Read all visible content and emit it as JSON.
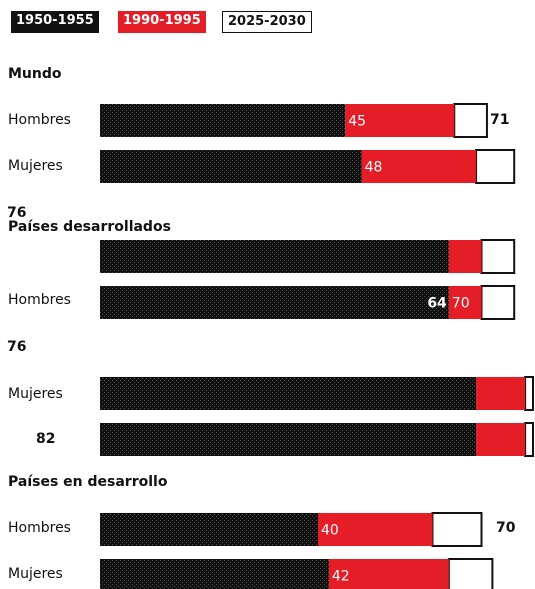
{
  "legend": [
    "1950-1955",
    "1990-1995",
    "2025-2030"
  ],
  "colors": {
    "p1950": "#111111",
    "p1990": "#e41d27",
    "p2025": "#ffffff"
  },
  "chart_data": {
    "type": "bar",
    "orientation": "horizontal",
    "stacked": true,
    "series": [
      {
        "name": "1950-1955"
      },
      {
        "name": "1990-1995"
      },
      {
        "name": "2025-2030"
      }
    ],
    "groups": [
      "Mundo",
      "Países desarrollados",
      "Países en desarrollo"
    ],
    "rows": [
      {
        "group": "Mundo",
        "label": "Hombres",
        "values": [
          45,
          65,
          71
        ],
        "shown_labels": [
          "45",
          "71"
        ]
      },
      {
        "group": "Mundo",
        "label": "Mujeres",
        "values": [
          48,
          69,
          76
        ],
        "shown_labels": [
          "48",
          "76"
        ]
      },
      {
        "group": "Países desarrollados",
        "label": "Hombres",
        "values": [
          64,
          70,
          76
        ],
        "shown_labels": [
          "64",
          "70",
          "76"
        ]
      },
      {
        "group": "Países desarrollados",
        "label": "Mujeres",
        "values": [
          69,
          78,
          82
        ],
        "shown_labels": [
          "82"
        ]
      },
      {
        "group": "Países en desarrollo",
        "label": "Hombres",
        "values": [
          40,
          61,
          70
        ],
        "shown_labels": [
          "40",
          "70"
        ]
      },
      {
        "group": "Países en desarrollo",
        "label": "Mujeres",
        "values": [
          42,
          64,
          72
        ],
        "shown_labels": [
          "42"
        ]
      }
    ]
  }
}
